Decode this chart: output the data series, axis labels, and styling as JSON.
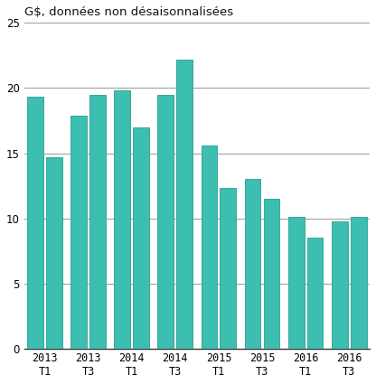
{
  "title": "G$, données non désaisonnalisées",
  "x_labels": [
    "2013\nT1",
    "2013\nT3",
    "2014\nT1",
    "2014\nT3",
    "2015\nT1",
    "2015\nT3",
    "2016\nT1",
    "2016\nT3"
  ],
  "values": [
    19.3,
    14.7,
    17.9,
    19.5,
    19.8,
    17.0,
    19.5,
    22.2,
    15.6,
    12.3,
    13.0,
    11.5,
    10.1,
    8.5,
    9.8,
    10.1
  ],
  "bar_color": "#3CBFB0",
  "bar_edge_color": "#2A9E90",
  "ylim": [
    0,
    25
  ],
  "yticks": [
    0,
    5,
    10,
    15,
    20,
    25
  ],
  "title_fontsize": 9.5,
  "tick_fontsize": 8.5,
  "background_color": "#ffffff",
  "grid_color": "#999999",
  "spine_color": "#333333"
}
